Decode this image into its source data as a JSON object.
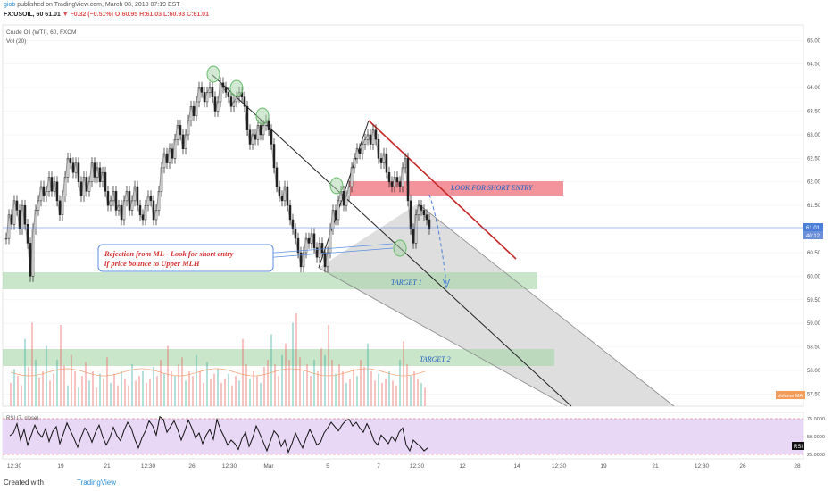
{
  "header": {
    "author": "giob",
    "published_text": "published on TradingView.com, March 08, 2018 07:19 EST",
    "symbol_interval": "FX:USOIL, 60",
    "last": "61.01",
    "change": "▼ −0.32 (−0.51%)",
    "open": "O:60.95",
    "high": "H:61.03",
    "low": "L:60.93",
    "close": "C:61.01"
  },
  "chart_data": {
    "type": "candlestick",
    "title": "Crude Oil (WTI), 60, FXCM",
    "volume_label": "Vol (20)",
    "volume_ma_label": "Volume MA",
    "rsi_label": "RSI (7, close)",
    "rsi_badge": "RSI",
    "price_ticks": [
      "65.00",
      "64.50",
      "64.00",
      "63.50",
      "63.00",
      "62.50",
      "62.00",
      "61.50",
      "61.00",
      "60.50",
      "60.00",
      "59.50",
      "59.00",
      "58.50",
      "58.00",
      "57.50"
    ],
    "rsi_ticks": [
      "75.0000",
      "50.0000",
      "25.0000"
    ],
    "last_price_label": "61.01",
    "countdown_label": "40:12",
    "x_labels": [
      "12:30",
      "19",
      "21",
      "12:30",
      "26",
      "12:30",
      "Mar",
      "5",
      "7",
      "12:30",
      "12",
      "14",
      "12:30",
      "19",
      "21",
      "12:30",
      "26",
      "28"
    ],
    "ylim": [
      57.3,
      65.1
    ],
    "close_path": [
      [
        0,
        60.8
      ],
      [
        3,
        61.3
      ],
      [
        6,
        61.1
      ],
      [
        9,
        61.6
      ],
      [
        12,
        61.4
      ],
      [
        15,
        61.0
      ],
      [
        18,
        61.5
      ],
      [
        21,
        61.1
      ],
      [
        24,
        60.7
      ],
      [
        27,
        60.0
      ],
      [
        30,
        61.0
      ],
      [
        33,
        61.4
      ],
      [
        36,
        61.6
      ],
      [
        39,
        61.9
      ],
      [
        42,
        61.7
      ],
      [
        45,
        61.8
      ],
      [
        48,
        62.1
      ],
      [
        51,
        61.8
      ],
      [
        54,
        62.0
      ],
      [
        57,
        61.6
      ],
      [
        60,
        61.3
      ],
      [
        63,
        61.7
      ],
      [
        66,
        62.1
      ],
      [
        69,
        62.5
      ],
      [
        72,
        62.4
      ],
      [
        75,
        62.2
      ],
      [
        78,
        62.4
      ],
      [
        81,
        62.0
      ],
      [
        84,
        61.7
      ],
      [
        87,
        62.1
      ],
      [
        90,
        61.8
      ],
      [
        93,
        62.0
      ],
      [
        96,
        62.4
      ],
      [
        99,
        62.1
      ],
      [
        102,
        62.3
      ],
      [
        105,
        62.0
      ],
      [
        108,
        62.2
      ],
      [
        111,
        61.8
      ],
      [
        114,
        61.5
      ],
      [
        117,
        61.6
      ],
      [
        120,
        61.8
      ],
      [
        123,
        61.4
      ],
      [
        126,
        61.5
      ],
      [
        129,
        61.2
      ],
      [
        132,
        61.6
      ],
      [
        135,
        61.8
      ],
      [
        138,
        61.4
      ],
      [
        141,
        61.6
      ],
      [
        144,
        61.9
      ],
      [
        147,
        61.5
      ],
      [
        150,
        61.3
      ],
      [
        153,
        61.2
      ],
      [
        156,
        61.5
      ],
      [
        159,
        61.7
      ],
      [
        162,
        61.6
      ],
      [
        165,
        61.2
      ],
      [
        168,
        61.4
      ],
      [
        171,
        61.8
      ],
      [
        174,
        62.3
      ],
      [
        177,
        62.6
      ],
      [
        180,
        62.4
      ],
      [
        183,
        62.7
      ],
      [
        186,
        62.5
      ],
      [
        189,
        62.9
      ],
      [
        192,
        63.2
      ],
      [
        195,
        63.0
      ],
      [
        198,
        62.7
      ],
      [
        201,
        63.0
      ],
      [
        204,
        63.3
      ],
      [
        207,
        63.6
      ],
      [
        210,
        63.4
      ],
      [
        213,
        63.7
      ],
      [
        216,
        64.0
      ],
      [
        219,
        63.9
      ],
      [
        222,
        63.7
      ],
      [
        225,
        63.9
      ],
      [
        228,
        64.0
      ],
      [
        231,
        63.8
      ],
      [
        234,
        63.5
      ],
      [
        237,
        63.7
      ],
      [
        240,
        64.1
      ],
      [
        243,
        64.0
      ],
      [
        246,
        63.9
      ],
      [
        249,
        63.8
      ],
      [
        252,
        63.6
      ],
      [
        255,
        63.7
      ],
      [
        258,
        63.8
      ],
      [
        261,
        63.9
      ],
      [
        264,
        63.8
      ],
      [
        267,
        63.6
      ],
      [
        270,
        63.1
      ],
      [
        273,
        62.8
      ],
      [
        276,
        63.0
      ],
      [
        279,
        62.9
      ],
      [
        282,
        63.2
      ],
      [
        285,
        63.0
      ],
      [
        288,
        63.2
      ],
      [
        291,
        63.3
      ],
      [
        294,
        63.1
      ],
      [
        297,
        62.8
      ],
      [
        300,
        62.3
      ],
      [
        303,
        61.9
      ],
      [
        306,
        61.7
      ],
      [
        309,
        61.6
      ],
      [
        312,
        61.9
      ],
      [
        315,
        61.5
      ],
      [
        318,
        61.2
      ],
      [
        321,
        61.0
      ],
      [
        324,
        60.8
      ],
      [
        327,
        60.5
      ],
      [
        330,
        60.2
      ],
      [
        333,
        60.5
      ],
      [
        336,
        60.8
      ],
      [
        339,
        60.7
      ],
      [
        342,
        60.9
      ],
      [
        345,
        60.6
      ],
      [
        348,
        60.4
      ],
      [
        351,
        60.7
      ],
      [
        354,
        60.5
      ],
      [
        357,
        60.2
      ],
      [
        360,
        60.5
      ],
      [
        363,
        61.0
      ],
      [
        366,
        61.4
      ],
      [
        369,
        61.2
      ],
      [
        372,
        61.6
      ],
      [
        375,
        61.8
      ],
      [
        378,
        61.5
      ],
      [
        381,
        61.7
      ],
      [
        384,
        61.9
      ],
      [
        387,
        62.3
      ],
      [
        390,
        62.5
      ],
      [
        393,
        62.7
      ],
      [
        396,
        62.6
      ],
      [
        399,
        62.8
      ],
      [
        402,
        62.9
      ],
      [
        405,
        63.0
      ],
      [
        408,
        62.8
      ],
      [
        411,
        63.1
      ],
      [
        414,
        62.9
      ],
      [
        417,
        62.5
      ],
      [
        420,
        62.4
      ],
      [
        423,
        62.6
      ],
      [
        426,
        62.2
      ],
      [
        429,
        62.0
      ],
      [
        432,
        61.9
      ],
      [
        435,
        62.1
      ],
      [
        438,
        62.0
      ],
      [
        441,
        61.9
      ],
      [
        444,
        62.3
      ],
      [
        447,
        62.5
      ],
      [
        450,
        61.6
      ],
      [
        453,
        61.0
      ],
      [
        456,
        60.7
      ],
      [
        459,
        61.3
      ],
      [
        462,
        61.5
      ],
      [
        465,
        61.4
      ],
      [
        468,
        61.3
      ],
      [
        471,
        61.2
      ],
      [
        474,
        61.0
      ]
    ],
    "rsi_path": [
      [
        8,
        51
      ],
      [
        12,
        55
      ],
      [
        16,
        68
      ],
      [
        20,
        45
      ],
      [
        24,
        60
      ],
      [
        28,
        38
      ],
      [
        32,
        52
      ],
      [
        36,
        66
      ],
      [
        40,
        55
      ],
      [
        44,
        49
      ],
      [
        48,
        61
      ],
      [
        52,
        43
      ],
      [
        56,
        57
      ],
      [
        60,
        64
      ],
      [
        64,
        40
      ],
      [
        68,
        54
      ],
      [
        72,
        69
      ],
      [
        76,
        58
      ],
      [
        80,
        47
      ],
      [
        84,
        35
      ],
      [
        88,
        50
      ],
      [
        92,
        62
      ],
      [
        96,
        55
      ],
      [
        100,
        42
      ],
      [
        104,
        56
      ],
      [
        108,
        66
      ],
      [
        112,
        50
      ],
      [
        116,
        38
      ],
      [
        120,
        48
      ],
      [
        124,
        63
      ],
      [
        128,
        51
      ],
      [
        132,
        44
      ],
      [
        136,
        59
      ],
      [
        140,
        70
      ],
      [
        144,
        62
      ],
      [
        148,
        46
      ],
      [
        152,
        34
      ],
      [
        156,
        48
      ],
      [
        160,
        58
      ],
      [
        164,
        72
      ],
      [
        168,
        65
      ],
      [
        172,
        52
      ],
      [
        176,
        78
      ],
      [
        180,
        74
      ],
      [
        184,
        56
      ],
      [
        188,
        64
      ],
      [
        192,
        72
      ],
      [
        196,
        60
      ],
      [
        200,
        45
      ],
      [
        204,
        58
      ],
      [
        208,
        73
      ],
      [
        212,
        62
      ],
      [
        216,
        48
      ],
      [
        220,
        55
      ],
      [
        224,
        40
      ],
      [
        228,
        52
      ],
      [
        232,
        60
      ],
      [
        236,
        46
      ],
      [
        240,
        74
      ],
      [
        244,
        60
      ],
      [
        248,
        50
      ],
      [
        252,
        38
      ],
      [
        256,
        45
      ],
      [
        260,
        40
      ],
      [
        264,
        32
      ],
      [
        268,
        47
      ],
      [
        272,
        56
      ],
      [
        276,
        36
      ],
      [
        280,
        48
      ],
      [
        284,
        65
      ],
      [
        288,
        54
      ],
      [
        292,
        42
      ],
      [
        296,
        30
      ],
      [
        300,
        44
      ],
      [
        304,
        58
      ],
      [
        308,
        52
      ],
      [
        312,
        36
      ],
      [
        316,
        45
      ],
      [
        320,
        28
      ],
      [
        324,
        40
      ],
      [
        328,
        55
      ],
      [
        332,
        44
      ],
      [
        336,
        34
      ],
      [
        340,
        48
      ],
      [
        344,
        60
      ],
      [
        348,
        50
      ],
      [
        352,
        38
      ],
      [
        356,
        42
      ],
      [
        360,
        55
      ],
      [
        364,
        62
      ],
      [
        368,
        70
      ],
      [
        372,
        64
      ],
      [
        376,
        58
      ],
      [
        380,
        66
      ],
      [
        384,
        72
      ],
      [
        388,
        74
      ],
      [
        392,
        65
      ],
      [
        396,
        70
      ],
      [
        400,
        62
      ],
      [
        404,
        56
      ],
      [
        408,
        68
      ],
      [
        412,
        58
      ],
      [
        416,
        44
      ],
      [
        420,
        38
      ],
      [
        424,
        52
      ],
      [
        428,
        46
      ],
      [
        432,
        40
      ],
      [
        436,
        50
      ],
      [
        440,
        43
      ],
      [
        444,
        56
      ],
      [
        448,
        62
      ],
      [
        452,
        38
      ],
      [
        456,
        30
      ],
      [
        460,
        45
      ],
      [
        464,
        40
      ],
      [
        468,
        36
      ],
      [
        472,
        30
      ],
      [
        476,
        34
      ]
    ],
    "volume_bars": [
      [
        8,
        20
      ],
      [
        12,
        32
      ],
      [
        16,
        26
      ],
      [
        20,
        18
      ],
      [
        24,
        58
      ],
      [
        28,
        34
      ],
      [
        32,
        72
      ],
      [
        36,
        40
      ],
      [
        40,
        25
      ],
      [
        44,
        30
      ],
      [
        48,
        52
      ],
      [
        52,
        22
      ],
      [
        56,
        28
      ],
      [
        60,
        40
      ],
      [
        64,
        70
      ],
      [
        68,
        35
      ],
      [
        72,
        18
      ],
      [
        76,
        44
      ],
      [
        80,
        30
      ],
      [
        84,
        16
      ],
      [
        88,
        26
      ],
      [
        92,
        38
      ],
      [
        96,
        22
      ],
      [
        100,
        30
      ],
      [
        104,
        16
      ],
      [
        108,
        28
      ],
      [
        112,
        24
      ],
      [
        116,
        42
      ],
      [
        120,
        20
      ],
      [
        124,
        28
      ],
      [
        128,
        18
      ],
      [
        132,
        30
      ],
      [
        136,
        24
      ],
      [
        140,
        18
      ],
      [
        144,
        36
      ],
      [
        148,
        22
      ],
      [
        152,
        26
      ],
      [
        156,
        30
      ],
      [
        160,
        20
      ],
      [
        164,
        24
      ],
      [
        168,
        34
      ],
      [
        172,
        26
      ],
      [
        176,
        40
      ],
      [
        180,
        28
      ],
      [
        184,
        52
      ],
      [
        188,
        30
      ],
      [
        192,
        26
      ],
      [
        196,
        36
      ],
      [
        200,
        42
      ],
      [
        204,
        22
      ],
      [
        208,
        30
      ],
      [
        212,
        26
      ],
      [
        216,
        44
      ],
      [
        220,
        30
      ],
      [
        224,
        20
      ],
      [
        228,
        38
      ],
      [
        232,
        24
      ],
      [
        236,
        28
      ],
      [
        240,
        32
      ],
      [
        244,
        20
      ],
      [
        248,
        24
      ],
      [
        252,
        28
      ],
      [
        256,
        18
      ],
      [
        260,
        26
      ],
      [
        264,
        22
      ],
      [
        268,
        58
      ],
      [
        272,
        36
      ],
      [
        276,
        24
      ],
      [
        280,
        30
      ],
      [
        284,
        26
      ],
      [
        288,
        20
      ],
      [
        292,
        34
      ],
      [
        296,
        40
      ],
      [
        300,
        62
      ],
      [
        304,
        36
      ],
      [
        308,
        26
      ],
      [
        312,
        44
      ],
      [
        316,
        54
      ],
      [
        320,
        40
      ],
      [
        324,
        72
      ],
      [
        328,
        80
      ],
      [
        332,
        42
      ],
      [
        336,
        30
      ],
      [
        340,
        36
      ],
      [
        344,
        26
      ],
      [
        348,
        40
      ],
      [
        352,
        30
      ],
      [
        356,
        50
      ],
      [
        360,
        44
      ],
      [
        364,
        70
      ],
      [
        368,
        40
      ],
      [
        372,
        28
      ],
      [
        376,
        36
      ],
      [
        380,
        30
      ],
      [
        384,
        20
      ],
      [
        388,
        24
      ],
      [
        392,
        32
      ],
      [
        396,
        26
      ],
      [
        400,
        40
      ],
      [
        404,
        34
      ],
      [
        408,
        54
      ],
      [
        412,
        30
      ],
      [
        416,
        22
      ],
      [
        420,
        28
      ],
      [
        424,
        20
      ],
      [
        428,
        24
      ],
      [
        432,
        30
      ],
      [
        436,
        22
      ],
      [
        440,
        18
      ],
      [
        444,
        40
      ],
      [
        448,
        56
      ],
      [
        452,
        36
      ],
      [
        456,
        26
      ],
      [
        460,
        30
      ],
      [
        464,
        24
      ],
      [
        468,
        20
      ],
      [
        472,
        16
      ]
    ],
    "annotations": {
      "short_entry": "LOOK FOR SHORT ENTRY",
      "target1": "TARGET 1",
      "target2": "TARGET 2",
      "callout_line1": "Rejection from ML - Look for short entry",
      "callout_line2": "if price bounce to Upper MLH"
    },
    "colors": {
      "up": "#26a69a",
      "down": "#ef5350",
      "line": "#222222",
      "short_zone": "#ef6f7a",
      "target_zone": "#a5d6a7",
      "fork_fill": "#d8d8d8",
      "rsi_bg": "#e8d8f5",
      "last_price": "#4a7fd8"
    }
  },
  "footer": {
    "created_with": "Created with",
    "brand": "TradingView"
  }
}
